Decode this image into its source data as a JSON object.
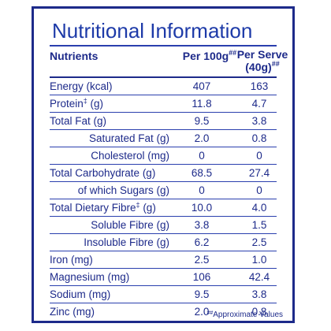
{
  "title": "Nutritional Information",
  "header": {
    "nutrients": "Nutrients",
    "per100_label": "Per 100g",
    "per100_mark": "##",
    "serve_line1": "Per Serve",
    "serve_line2": "(40g)",
    "serve_mark": "##"
  },
  "rows": [
    {
      "name": "Energy (kcal)",
      "v1": "407",
      "v2": "163"
    },
    {
      "name": "Protein",
      "mark": "‡",
      "unit": " (g)",
      "v1": "11.8",
      "v2": "4.7"
    },
    {
      "name": "Total Fat (g)",
      "v1": "9.5",
      "v2": "3.8"
    },
    {
      "name": "Saturated Fat (g)",
      "v1": "2.0",
      "v2": "0.8"
    },
    {
      "name": "Cholesterol (mg)",
      "v1": "0",
      "v2": "0"
    },
    {
      "name": "Total Carbohydrate (g)",
      "v1": "68.5",
      "v2": "27.4"
    },
    {
      "name": "of which Sugars (g)",
      "v1": "0",
      "v2": "0"
    },
    {
      "name": "Total Dietary Fibre",
      "mark": "‡",
      "unit": " (g)",
      "v1": "10.0",
      "v2": "4.0"
    },
    {
      "name": "Soluble Fibre (g)",
      "v1": "3.8",
      "v2": "1.5"
    },
    {
      "name": "Insoluble Fibre (g)",
      "v1": "6.2",
      "v2": "2.5"
    },
    {
      "name": "Iron (mg)",
      "v1": "2.5",
      "v2": "1.0"
    },
    {
      "name": "Magnesium (mg)",
      "v1": "106",
      "v2": "42.4"
    },
    {
      "name": "Sodium (mg)",
      "v1": "9.5",
      "v2": "3.8"
    },
    {
      "name": "Zinc (mg)",
      "v1": "2.0",
      "v2": "0.8"
    }
  ],
  "footnote": {
    "mark": "##",
    "text": "Approximate Values"
  },
  "colors": {
    "text": "#1d2a8a",
    "title": "#1d3aa8",
    "border": "#1d2a8a"
  }
}
